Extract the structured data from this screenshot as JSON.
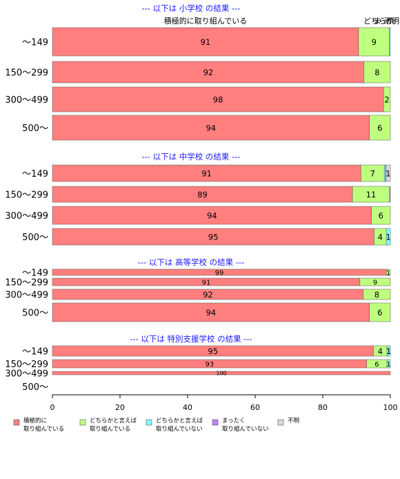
{
  "chart_data": {
    "type": "bar",
    "orientation": "horizontal",
    "stacked": true,
    "xlim": [
      0,
      100
    ],
    "x_ticks": [
      "0",
      "20",
      "40",
      "60",
      "80",
      "100"
    ],
    "header_labels": [
      "積極的に取り組んでいる",
      "どちらか",
      "まった",
      "不明"
    ],
    "legend_position": "bottom",
    "legend": [
      {
        "line1": "積極的に",
        "line2": "取り組んでいる",
        "color": "#ff7f7f"
      },
      {
        "line1": "どちらかと言えば",
        "line2": "取り組んでいる",
        "color": "#bfff7f"
      },
      {
        "line1": "どちらかと言えば",
        "line2": "取り組んでいない",
        "color": "#7fffff"
      },
      {
        "line1": "まったく",
        "line2": "取り組んでいない",
        "color": "#bf7fff"
      },
      {
        "line1": "不明",
        "line2": "",
        "color": "#d9d9d9"
      }
    ],
    "panels": [
      {
        "title": "--- 以下は 小学校 の結果 ---",
        "rows": [
          {
            "label": "～149",
            "values": [
              90.6,
              9.1,
              0.3,
              0,
              0
            ],
            "labels": [
              "91",
              "9",
              "",
              "",
              ""
            ]
          },
          {
            "label": "150～299",
            "values": [
              92.2,
              7.8,
              0,
              0,
              0
            ],
            "labels": [
              "92",
              "8",
              "",
              "",
              ""
            ]
          },
          {
            "label": "300～499",
            "values": [
              98.0,
              2.0,
              0,
              0,
              0
            ],
            "labels": [
              "98",
              "2",
              "",
              "",
              ""
            ]
          },
          {
            "label": "500～",
            "values": [
              93.8,
              6.2,
              0,
              0,
              0
            ],
            "labels": [
              "94",
              "6",
              "",
              "",
              ""
            ]
          }
        ]
      },
      {
        "title": "--- 以下は 中学校 の結果 ---",
        "rows": [
          {
            "label": "～149",
            "values": [
              91.3,
              6.9,
              0.4,
              0.1,
              1.3
            ],
            "labels": [
              "91",
              "7",
              "",
              "",
              "1"
            ]
          },
          {
            "label": "150～299",
            "values": [
              88.8,
              11.0,
              0,
              0.2,
              0
            ],
            "labels": [
              "89",
              "11",
              "",
              "",
              ""
            ]
          },
          {
            "label": "300～499",
            "values": [
              94.4,
              5.6,
              0,
              0,
              0
            ],
            "labels": [
              "94",
              "6",
              "",
              "",
              ""
            ]
          },
          {
            "label": "500～",
            "values": [
              95.2,
              3.6,
              1.2,
              0,
              0
            ],
            "labels": [
              "95",
              "4",
              "1",
              "",
              ""
            ]
          }
        ]
      },
      {
        "title": "--- 以下は 高等学校 の結果 ---",
        "rows": [
          {
            "label": "～149",
            "values": [
              98.8,
              1.2,
              0,
              0,
              0
            ],
            "labels": [
              "99",
              "1",
              "",
              "",
              ""
            ]
          },
          {
            "label": "150～299",
            "values": [
              91.0,
              9.0,
              0,
              0,
              0
            ],
            "labels": [
              "91",
              "9",
              "",
              "",
              ""
            ]
          },
          {
            "label": "300～499",
            "values": [
              92.0,
              8.0,
              0,
              0,
              0
            ],
            "labels": [
              "92",
              "8",
              "",
              "",
              ""
            ]
          },
          {
            "label": "500～",
            "values": [
              93.8,
              6.2,
              0,
              0,
              0
            ],
            "labels": [
              "94",
              "6",
              "",
              "",
              ""
            ]
          }
        ]
      },
      {
        "title": "--- 以下は 特別支援学校 の結果 ---",
        "rows": [
          {
            "label": "～149",
            "values": [
              95.0,
              4.0,
              1.0,
              0,
              0
            ],
            "labels": [
              "95",
              "4",
              "1",
              "",
              ""
            ]
          },
          {
            "label": "150～299",
            "values": [
              93.0,
              6.0,
              1.0,
              0,
              0
            ],
            "labels": [
              "93",
              "6",
              "1",
              "",
              ""
            ]
          },
          {
            "label": "300～499",
            "values": [
              100,
              0,
              0,
              0,
              0
            ],
            "labels": [
              "100",
              "",
              "",
              "",
              ""
            ]
          },
          {
            "label": "500～",
            "values": [
              0,
              0,
              0,
              0,
              0
            ],
            "labels": [
              "",
              "",
              "",
              "",
              ""
            ]
          }
        ]
      }
    ]
  }
}
